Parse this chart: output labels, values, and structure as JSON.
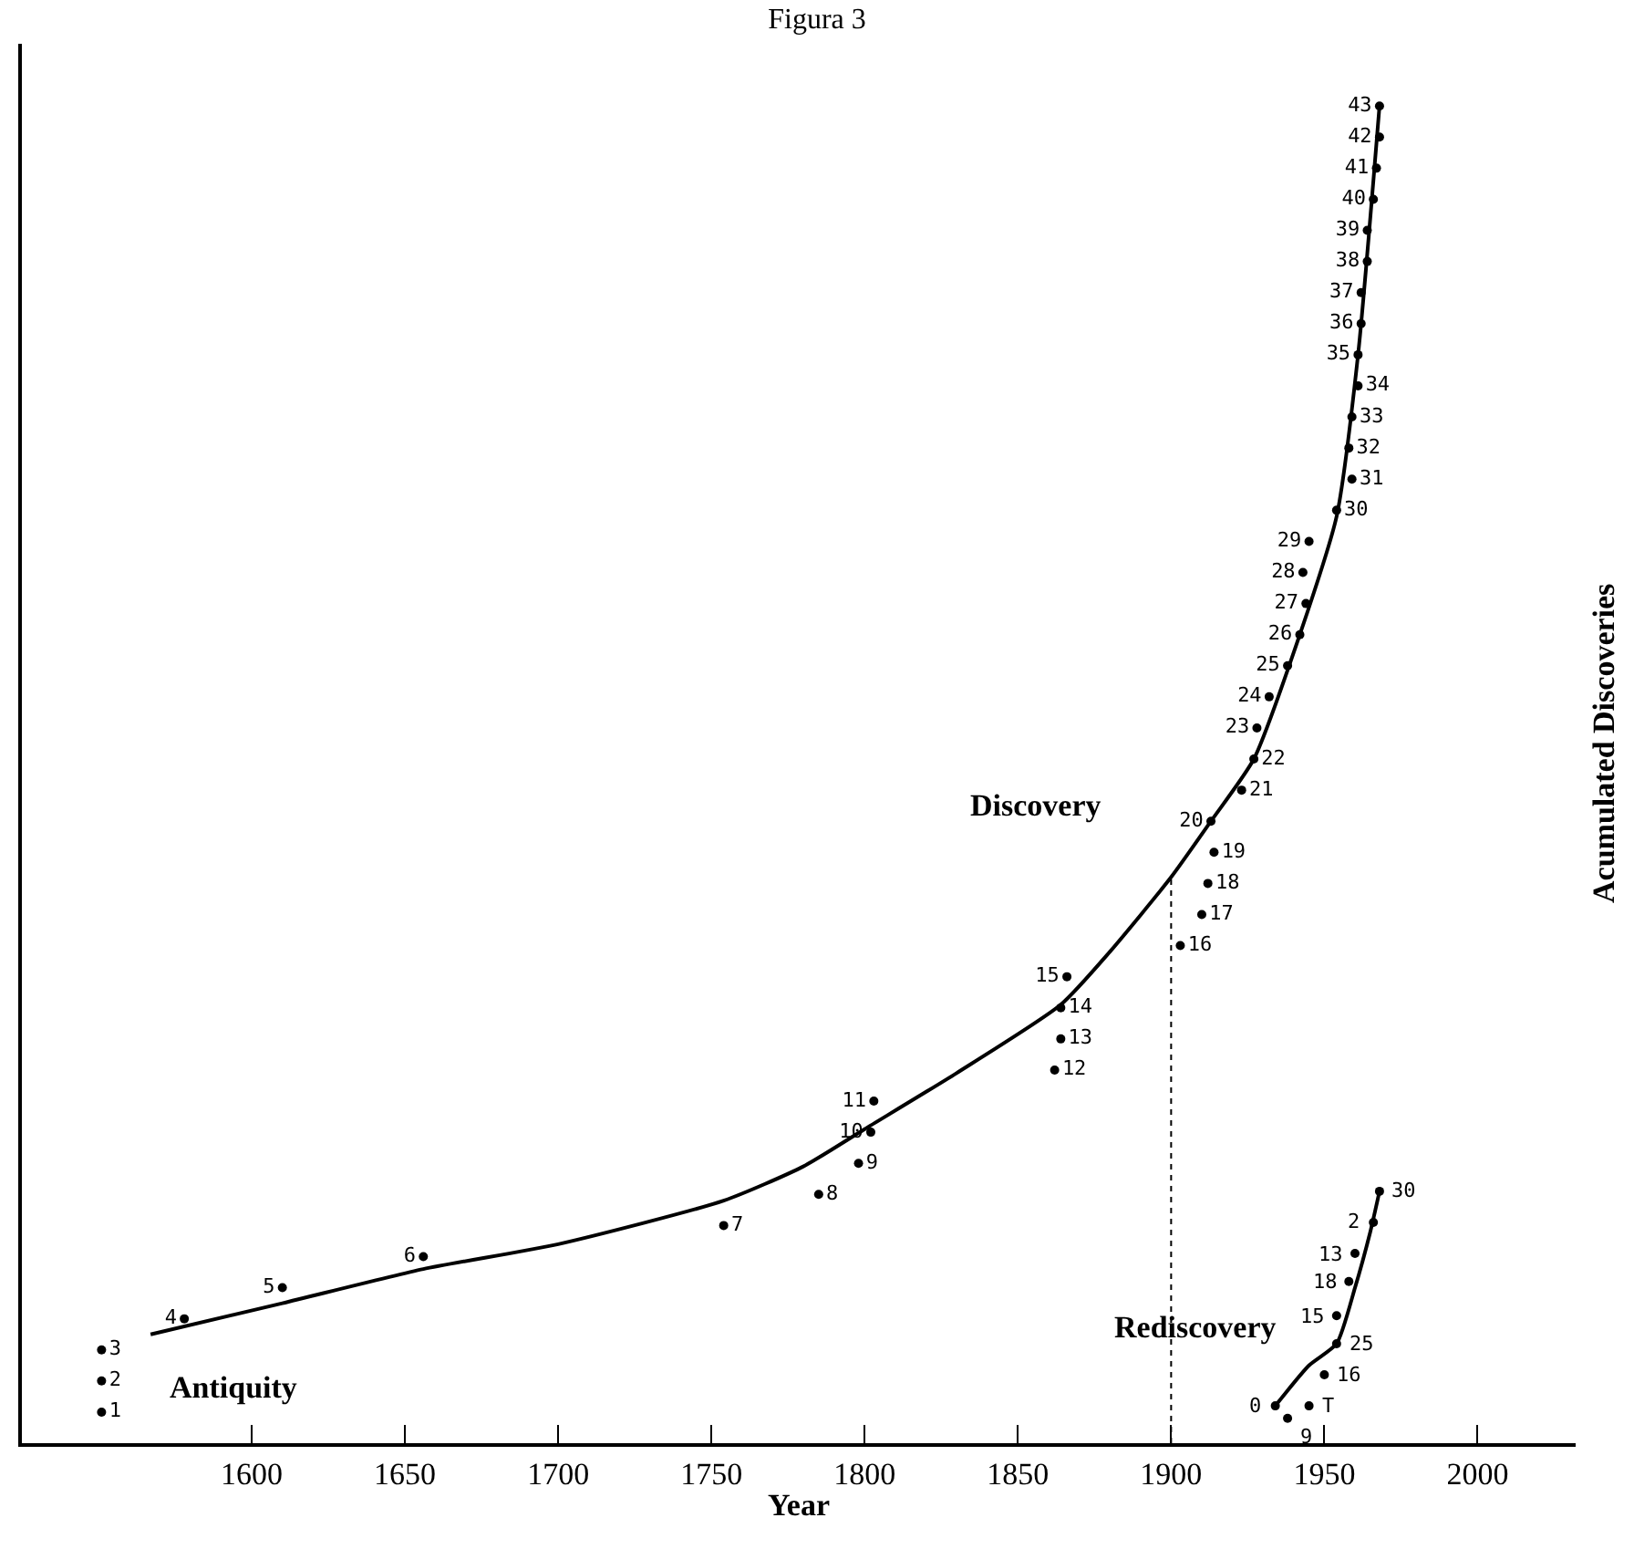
{
  "chart_data": {
    "type": "scatter",
    "title": "Figura 3",
    "xlabel": "Year",
    "ylabel": "Acumulated Discoveries",
    "xlim": [
      1525,
      2032
    ],
    "ylim": [
      0,
      45
    ],
    "xticks": [
      1600,
      1650,
      1700,
      1750,
      1800,
      1850,
      1900,
      1950,
      2000
    ],
    "tick_labels": "x",
    "marker": "circle",
    "series": [
      {
        "color": "#000000",
        "x": [
          1551,
          1551,
          1551,
          1578,
          1610,
          1656,
          1754,
          1785,
          1798,
          1802,
          1803,
          1862,
          1864,
          1864,
          1866,
          1903,
          1910,
          1912,
          1914,
          1913,
          1923,
          1927,
          1928,
          1932,
          1938,
          1942,
          1944,
          1943,
          1945,
          1954,
          1959,
          1958,
          1959,
          1961,
          1961,
          1962,
          1962,
          1964,
          1964,
          1966,
          1967,
          1968,
          1968
        ],
        "values": [
          1,
          2,
          3,
          4,
          5,
          6,
          7,
          8,
          9,
          10,
          11,
          12,
          13,
          14,
          15,
          16,
          17,
          18,
          19,
          20,
          21,
          22,
          23,
          24,
          25,
          26,
          27,
          28,
          29,
          30,
          31,
          32,
          33,
          34,
          35,
          36,
          37,
          38,
          39,
          40,
          41,
          42,
          43
        ],
        "value_labels": [
          "1",
          "2",
          "3",
          "4",
          "5",
          "6",
          "7",
          "8",
          "9",
          "10",
          "11",
          "12",
          "13",
          "14",
          "15",
          "16",
          "17",
          "18",
          "19",
          "20",
          "21",
          "22",
          "23",
          "24",
          "25",
          "26",
          "27",
          "28",
          "29",
          "30",
          "31",
          "32",
          "33",
          "34",
          "35",
          "36",
          "37",
          "38",
          "39",
          "40",
          "41",
          "42",
          "43"
        ]
      },
      {
        "type": "line",
        "color": "#000000",
        "marker": "none",
        "x": [
          1567,
          1610,
          1656,
          1700,
          1754,
          1780,
          1800,
          1830,
          1864,
          1880,
          1900,
          1913,
          1927,
          1942,
          1954,
          1961,
          1968
        ],
        "values": [
          3.5,
          4.5,
          5.6,
          6.4,
          7.8,
          8.9,
          10.1,
          11.9,
          14.1,
          15.8,
          18.2,
          20,
          22,
          26,
          29.8,
          35,
          43
        ]
      },
      {
        "color": "#000000",
        "x": [
          1934,
          1938,
          1945,
          1950,
          1954,
          1954,
          1958,
          1960,
          1966,
          1968
        ],
        "values": [
          1.2,
          0.8,
          1.2,
          2.2,
          3.2,
          4.1,
          5.2,
          6.1,
          7.1,
          8.1
        ]
      },
      {
        "type": "line",
        "color": "#000000",
        "marker": "none",
        "x": [
          1934,
          1945,
          1954,
          1960,
          1965,
          1968
        ],
        "values": [
          1.2,
          2.5,
          3.2,
          5,
          6.8,
          8.1
        ]
      },
      {
        "type": "line",
        "color": "#000000",
        "marker": "none",
        "line_style": "dotted",
        "x": [
          1900,
          1900
        ],
        "values": [
          0,
          18.2
        ]
      }
    ],
    "annotations": [
      "Discovery",
      "Rediscovery",
      "Antiquity",
      {
        "text": "0",
        "x": 1934,
        "y": 1.2
      },
      {
        "text": "9",
        "x": 1938,
        "y": 0.8
      },
      {
        "text": "T",
        "x": 1945,
        "y": 1.2
      },
      {
        "text": "16",
        "x": 1950,
        "y": 2.2
      },
      {
        "text": "25",
        "x": 1954,
        "y": 3.2
      },
      {
        "text": "15",
        "x": 1954,
        "y": 4.1
      },
      {
        "text": "18",
        "x": 1958,
        "y": 5.2
      },
      {
        "text": "13",
        "x": 1960,
        "y": 6.1
      },
      {
        "text": "2",
        "x": 1966,
        "y": 7.1
      },
      {
        "text": "30",
        "x": 1968,
        "y": 8.1
      }
    ]
  }
}
